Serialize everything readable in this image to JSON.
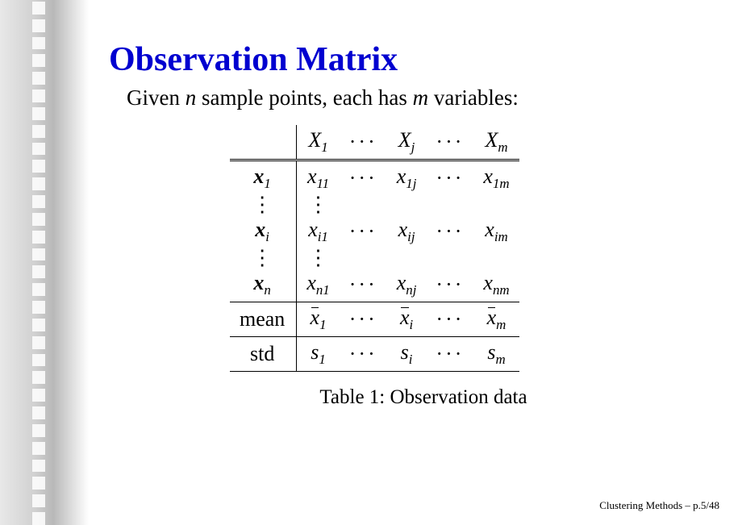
{
  "title": "Observation Matrix",
  "intro": {
    "pre": "Given ",
    "n": "n",
    "mid": " sample points, each has ",
    "m": "m",
    "post": " variables:"
  },
  "table": {
    "caption": "Table 1: Observation data",
    "header": {
      "c1": "X",
      "s1": "1",
      "c2": "X",
      "s2": "j",
      "c3": "X",
      "s3": "m"
    },
    "rows": [
      {
        "h": "x",
        "hs": "1",
        "c1": "x",
        "s1": "11",
        "c2": "x",
        "s2": "1j",
        "c3": "x",
        "s3": "1m"
      },
      {
        "h": "x",
        "hs": "i",
        "c1": "x",
        "s1": "i1",
        "c2": "x",
        "s2": "ij",
        "c3": "x",
        "s3": "im"
      },
      {
        "h": "x",
        "hs": "n",
        "c1": "x",
        "s1": "n1",
        "c2": "x",
        "s2": "nj",
        "c3": "x",
        "s3": "nm"
      }
    ],
    "mean": {
      "label": "mean",
      "c1": "x̄",
      "s1": "1",
      "c2": "x̄",
      "s2": "i",
      "c3": "x̄",
      "s3": "m"
    },
    "std": {
      "label": "std",
      "c1": "s",
      "s1": "1",
      "c2": "s",
      "s2": "i",
      "c3": "s",
      "s3": "m"
    }
  },
  "footer": "Clustering Methods – p.5/48",
  "style": {
    "title_color": "#0000d0",
    "bg": "#ffffff",
    "sidebar_gradient": [
      "#e8e8e8",
      "#d0d0d0",
      "#b8b8b8",
      "#ffffff"
    ],
    "title_fontsize": 42,
    "body_fontsize": 27,
    "table_fontsize": 26,
    "caption_fontsize": 25,
    "footer_fontsize": 13
  }
}
